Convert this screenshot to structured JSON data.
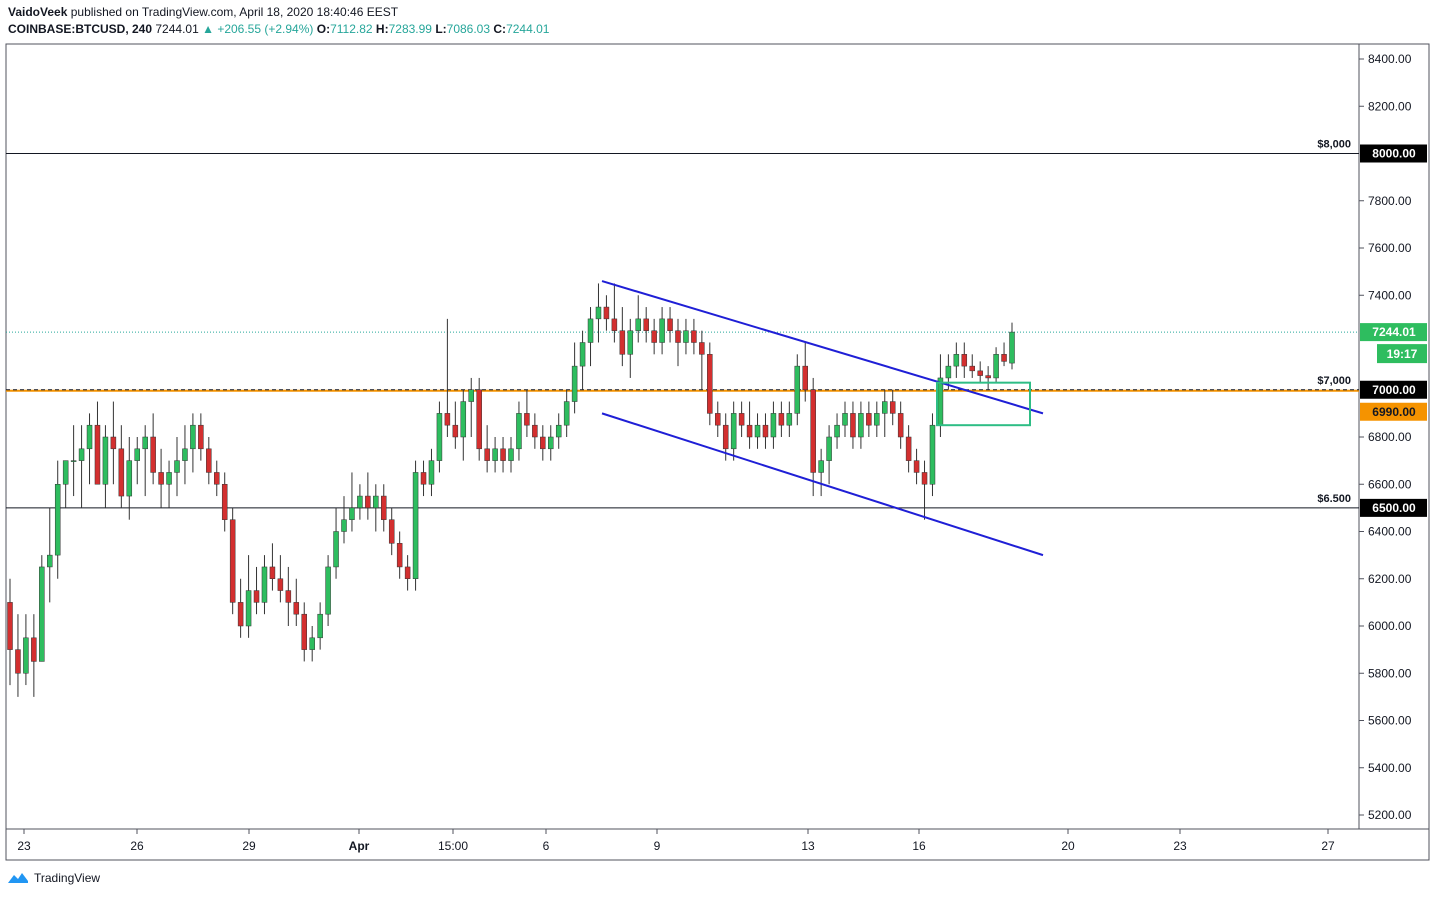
{
  "header": {
    "author": "VaidoVeek",
    "published_text": "published on TradingView.com, April 18, 2020 18:40:46 EEST",
    "symbol": "COINBASE:BTCUSD, 240",
    "last": "7244.01",
    "change": "▲ +206.55 (+2.94%)",
    "o_label": "O:",
    "o_value": "7112.82",
    "h_label": "H:",
    "h_value": "7283.99",
    "l_label": "L:",
    "l_value": "7086.03",
    "c_label": "C:",
    "c_value": "7244.01"
  },
  "footer": {
    "brand": "TradingView"
  },
  "colors": {
    "up": "#26a69a",
    "upBody": "#2ebd5f",
    "down": "#d32f2f",
    "channel": "#1f1fd6",
    "orange": "#f59300",
    "green_box": "#2ebd85"
  },
  "chart_data": {
    "type": "candlestick",
    "yaxis": {
      "min": 5150,
      "max": 8500,
      "ticks": [
        "8400.00",
        "8200.00",
        "7800.00",
        "7600.00",
        "7400.00",
        "6800.00",
        "6600.00",
        "6400.00",
        "6200.00",
        "6000.00",
        "5800.00",
        "5600.00",
        "5400.00",
        "5200.00"
      ]
    },
    "xaxis": {
      "ticks": [
        "23",
        "26",
        "29",
        "Apr",
        "15:00",
        "6",
        "9",
        "13",
        "16",
        "20",
        "23",
        "27"
      ]
    },
    "levels": [
      {
        "label": "$8,000",
        "value": 8000,
        "tag": "8000.00"
      },
      {
        "label": "$7,000",
        "value": 7000,
        "tag": "7000.00"
      },
      {
        "label": "$6.500",
        "value": 6500,
        "tag": "6500.00"
      }
    ],
    "orange_tag": "6990.00",
    "last_price": {
      "value": 7244.01,
      "tag": "7244.01",
      "countdown": "19:17"
    },
    "candles": [
      [
        6100,
        6200,
        5750,
        5900
      ],
      [
        5900,
        6050,
        5700,
        5800
      ],
      [
        5800,
        6050,
        5750,
        5950
      ],
      [
        5950,
        6050,
        5700,
        5850
      ],
      [
        5850,
        6300,
        5850,
        6250
      ],
      [
        6250,
        6500,
        6100,
        6300
      ],
      [
        6300,
        6700,
        6200,
        6600
      ],
      [
        6600,
        6700,
        6500,
        6700
      ],
      [
        6700,
        6850,
        6550,
        6700
      ],
      [
        6700,
        6850,
        6500,
        6750
      ],
      [
        6750,
        6900,
        6600,
        6850
      ],
      [
        6850,
        6950,
        6600,
        6600
      ],
      [
        6600,
        6850,
        6500,
        6800
      ],
      [
        6800,
        6950,
        6600,
        6750
      ],
      [
        6750,
        6850,
        6500,
        6550
      ],
      [
        6550,
        6800,
        6450,
        6700
      ],
      [
        6700,
        6800,
        6600,
        6750
      ],
      [
        6750,
        6850,
        6550,
        6800
      ],
      [
        6800,
        6900,
        6600,
        6650
      ],
      [
        6650,
        6750,
        6500,
        6600
      ],
      [
        6600,
        6700,
        6500,
        6650
      ],
      [
        6650,
        6800,
        6550,
        6700
      ],
      [
        6700,
        6850,
        6600,
        6750
      ],
      [
        6750,
        6900,
        6650,
        6850
      ],
      [
        6850,
        6900,
        6700,
        6750
      ],
      [
        6750,
        6800,
        6600,
        6650
      ],
      [
        6650,
        6700,
        6550,
        6600
      ],
      [
        6600,
        6650,
        6400,
        6450
      ],
      [
        6450,
        6500,
        6050,
        6100
      ],
      [
        6100,
        6200,
        5950,
        6000
      ],
      [
        6000,
        6300,
        5950,
        6150
      ],
      [
        6150,
        6250,
        6050,
        6100
      ],
      [
        6100,
        6300,
        6050,
        6250
      ],
      [
        6250,
        6350,
        6150,
        6200
      ],
      [
        6200,
        6300,
        6100,
        6150
      ],
      [
        6150,
        6250,
        6000,
        6100
      ],
      [
        6100,
        6200,
        6000,
        6050
      ],
      [
        6050,
        6100,
        5850,
        5900
      ],
      [
        5900,
        6000,
        5850,
        5950
      ],
      [
        5950,
        6100,
        5900,
        6050
      ],
      [
        6050,
        6300,
        6000,
        6250
      ],
      [
        6250,
        6500,
        6200,
        6400
      ],
      [
        6400,
        6550,
        6350,
        6450
      ],
      [
        6450,
        6650,
        6400,
        6500
      ],
      [
        6500,
        6600,
        6450,
        6550
      ],
      [
        6550,
        6650,
        6450,
        6500
      ],
      [
        6500,
        6600,
        6400,
        6550
      ],
      [
        6550,
        6600,
        6400,
        6450
      ],
      [
        6450,
        6500,
        6300,
        6350
      ],
      [
        6350,
        6400,
        6200,
        6250
      ],
      [
        6250,
        6300,
        6150,
        6200
      ],
      [
        6200,
        6700,
        6150,
        6650
      ],
      [
        6650,
        6700,
        6550,
        6600
      ],
      [
        6600,
        6750,
        6550,
        6700
      ],
      [
        6700,
        6950,
        6650,
        6900
      ],
      [
        6900,
        7300,
        6800,
        6850
      ],
      [
        6850,
        6950,
        6750,
        6800
      ],
      [
        6800,
        7000,
        6700,
        6950
      ],
      [
        6950,
        7050,
        6800,
        7000
      ],
      [
        7000,
        7050,
        6700,
        6750
      ],
      [
        6750,
        6850,
        6650,
        6700
      ],
      [
        6700,
        6800,
        6650,
        6750
      ],
      [
        6750,
        6800,
        6650,
        6700
      ],
      [
        6700,
        6800,
        6650,
        6750
      ],
      [
        6750,
        6950,
        6700,
        6900
      ],
      [
        6900,
        7000,
        6800,
        6850
      ],
      [
        6850,
        6900,
        6750,
        6800
      ],
      [
        6800,
        6850,
        6700,
        6750
      ],
      [
        6750,
        6850,
        6700,
        6800
      ],
      [
        6800,
        6900,
        6750,
        6850
      ],
      [
        6850,
        7000,
        6800,
        6950
      ],
      [
        6950,
        7200,
        6900,
        7100
      ],
      [
        7100,
        7250,
        7000,
        7200
      ],
      [
        7200,
        7350,
        7100,
        7300
      ],
      [
        7300,
        7450,
        7200,
        7350
      ],
      [
        7350,
        7400,
        7250,
        7300
      ],
      [
        7300,
        7450,
        7200,
        7250
      ],
      [
        7250,
        7350,
        7100,
        7150
      ],
      [
        7150,
        7300,
        7050,
        7250
      ],
      [
        7250,
        7400,
        7200,
        7300
      ],
      [
        7300,
        7350,
        7200,
        7250
      ],
      [
        7250,
        7300,
        7150,
        7200
      ],
      [
        7200,
        7350,
        7150,
        7300
      ],
      [
        7300,
        7350,
        7200,
        7250
      ],
      [
        7250,
        7300,
        7100,
        7200
      ],
      [
        7200,
        7300,
        7150,
        7250
      ],
      [
        7250,
        7300,
        7150,
        7200
      ],
      [
        7200,
        7250,
        7000,
        7150
      ],
      [
        7150,
        7200,
        6850,
        6900
      ],
      [
        6900,
        6950,
        6800,
        6850
      ],
      [
        6850,
        6900,
        6700,
        6750
      ],
      [
        6750,
        6950,
        6700,
        6900
      ],
      [
        6900,
        6950,
        6800,
        6850
      ],
      [
        6850,
        6950,
        6750,
        6800
      ],
      [
        6800,
        6900,
        6750,
        6850
      ],
      [
        6850,
        6900,
        6750,
        6800
      ],
      [
        6800,
        6950,
        6750,
        6900
      ],
      [
        6900,
        6950,
        6800,
        6850
      ],
      [
        6850,
        6950,
        6800,
        6900
      ],
      [
        6900,
        7150,
        6850,
        7100
      ],
      [
        7100,
        7200,
        6950,
        7000
      ],
      [
        7000,
        7050,
        6550,
        6650
      ],
      [
        6650,
        6750,
        6550,
        6700
      ],
      [
        6700,
        6850,
        6600,
        6800
      ],
      [
        6800,
        6900,
        6750,
        6850
      ],
      [
        6850,
        6950,
        6800,
        6900
      ],
      [
        6900,
        6950,
        6750,
        6800
      ],
      [
        6800,
        6950,
        6750,
        6900
      ],
      [
        6900,
        6950,
        6800,
        6850
      ],
      [
        6850,
        6950,
        6800,
        6900
      ],
      [
        6900,
        7000,
        6800,
        6950
      ],
      [
        6950,
        7000,
        6850,
        6900
      ],
      [
        6900,
        6950,
        6750,
        6800
      ],
      [
        6800,
        6850,
        6650,
        6700
      ],
      [
        6700,
        6750,
        6600,
        6650
      ],
      [
        6650,
        6700,
        6450,
        6600
      ],
      [
        6600,
        6900,
        6550,
        6850
      ],
      [
        6850,
        7150,
        6800,
        7050
      ],
      [
        7050,
        7150,
        7000,
        7100
      ],
      [
        7100,
        7200,
        7050,
        7150
      ],
      [
        7150,
        7200,
        7050,
        7100
      ],
      [
        7100,
        7150,
        7050,
        7080
      ],
      [
        7080,
        7120,
        7030,
        7060
      ],
      [
        7060,
        7100,
        7000,
        7050
      ],
      [
        7050,
        7180,
        7030,
        7150
      ],
      [
        7150,
        7200,
        7100,
        7120
      ],
      [
        7112.82,
        7283.99,
        7086.03,
        7244.01
      ]
    ],
    "channel": {
      "upper": [
        [
          7460,
          0
        ],
        [
          6900,
          1
        ]
      ],
      "lower": [
        [
          6900,
          0
        ],
        [
          6300,
          1
        ]
      ]
    }
  }
}
